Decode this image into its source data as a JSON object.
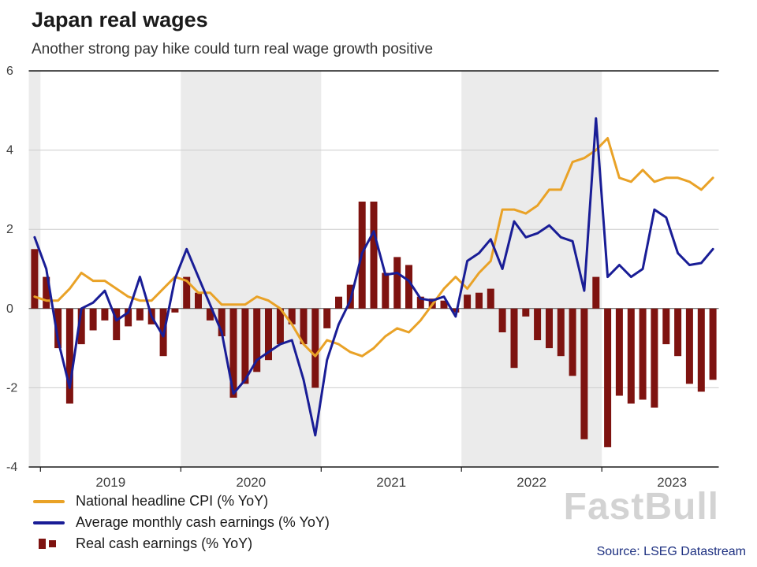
{
  "watermark": "FastBull",
  "source": {
    "label": "Source: LSEG Datastream"
  },
  "colors": {
    "band": "#EBEBEB",
    "grid": "#CCCCCC",
    "zero_line": "#4D4D4D",
    "axis_rule": "#1A1A1A",
    "tick_text": "#404040",
    "source_text": "#1C2F80",
    "watermark_text": "rgba(175,175,175,0.55)"
  },
  "chart_data": {
    "type": "mixed",
    "title": "Japan real wages",
    "subtitle": "Another strong pay hike could turn real wage growth positive",
    "xlabel": "",
    "ylabel": "% YoY",
    "ylim": [
      -4,
      6
    ],
    "yticks": [
      -4,
      -2,
      0,
      2,
      4,
      6
    ],
    "grid": true,
    "legend_position": "bottom-left",
    "year_labels": [
      "2019",
      "2020",
      "2021",
      "2022",
      "2023"
    ],
    "shaded_years": [
      "2018",
      "2020",
      "2022"
    ],
    "x": [
      "2018-12",
      "2019-01",
      "2019-02",
      "2019-03",
      "2019-04",
      "2019-05",
      "2019-06",
      "2019-07",
      "2019-08",
      "2019-09",
      "2019-10",
      "2019-11",
      "2019-12",
      "2020-01",
      "2020-02",
      "2020-03",
      "2020-04",
      "2020-05",
      "2020-06",
      "2020-07",
      "2020-08",
      "2020-09",
      "2020-10",
      "2020-11",
      "2020-12",
      "2021-01",
      "2021-02",
      "2021-03",
      "2021-04",
      "2021-05",
      "2021-06",
      "2021-07",
      "2021-08",
      "2021-09",
      "2021-10",
      "2021-11",
      "2021-12",
      "2022-01",
      "2022-02",
      "2022-03",
      "2022-04",
      "2022-05",
      "2022-06",
      "2022-07",
      "2022-08",
      "2022-09",
      "2022-10",
      "2022-11",
      "2022-12",
      "2023-01",
      "2023-02",
      "2023-03",
      "2023-04",
      "2023-05",
      "2023-06",
      "2023-07",
      "2023-08",
      "2023-09",
      "2023-10"
    ],
    "series": [
      {
        "name": "National headline CPI (% YoY)",
        "type": "line",
        "color": "#E9A227",
        "values": [
          0.3,
          0.2,
          0.2,
          0.5,
          0.9,
          0.7,
          0.7,
          0.5,
          0.3,
          0.2,
          0.2,
          0.5,
          0.8,
          0.7,
          0.4,
          0.4,
          0.1,
          0.1,
          0.1,
          0.3,
          0.2,
          0.0,
          -0.4,
          -0.9,
          -1.2,
          -0.8,
          -0.9,
          -1.1,
          -1.2,
          -1.0,
          -0.7,
          -0.5,
          -0.6,
          -0.3,
          0.1,
          0.5,
          0.8,
          0.5,
          0.9,
          1.2,
          2.5,
          2.5,
          2.4,
          2.6,
          3.0,
          3.0,
          3.7,
          3.8,
          4.0,
          4.3,
          3.3,
          3.2,
          3.5,
          3.2,
          3.3,
          3.3,
          3.2,
          3.0,
          3.3
        ]
      },
      {
        "name": "Average monthly cash earnings (% YoY)",
        "type": "line",
        "color": "#191D96",
        "values": [
          1.8,
          1.0,
          -0.8,
          -2.0,
          0.0,
          0.15,
          0.45,
          -0.3,
          -0.1,
          0.8,
          -0.2,
          -0.7,
          0.75,
          1.5,
          0.8,
          0.1,
          -0.6,
          -2.15,
          -1.8,
          -1.3,
          -1.1,
          -0.9,
          -0.8,
          -1.8,
          -3.2,
          -1.3,
          -0.4,
          0.2,
          1.4,
          1.95,
          0.85,
          0.9,
          0.7,
          0.25,
          0.2,
          0.3,
          -0.2,
          1.2,
          1.4,
          1.75,
          1.0,
          2.2,
          1.8,
          1.9,
          2.1,
          1.8,
          1.7,
          0.45,
          4.8,
          0.8,
          1.1,
          0.8,
          1.0,
          2.5,
          2.3,
          1.4,
          1.1,
          1.15,
          1.5
        ]
      },
      {
        "name": "Real cash earnings (% YoY)",
        "type": "bar",
        "color": "#7E1310",
        "values": [
          1.5,
          0.8,
          -1.0,
          -2.4,
          -0.9,
          -0.55,
          -0.3,
          -0.8,
          -0.45,
          -0.3,
          -0.4,
          -1.2,
          -0.1,
          0.8,
          0.4,
          -0.3,
          -0.7,
          -2.25,
          -1.9,
          -1.6,
          -1.3,
          -0.9,
          -0.4,
          -0.9,
          -2.0,
          -0.5,
          0.3,
          0.6,
          2.7,
          2.7,
          0.9,
          1.3,
          1.1,
          0.3,
          0.25,
          0.2,
          -0.1,
          0.35,
          0.4,
          0.5,
          -0.6,
          -1.5,
          -0.2,
          -0.8,
          -1.0,
          -1.2,
          -1.7,
          -3.3,
          0.8,
          -3.5,
          -2.2,
          -2.4,
          -2.3,
          -2.5,
          -0.9,
          -1.2,
          -1.9,
          -2.1,
          -1.8
        ]
      }
    ]
  }
}
